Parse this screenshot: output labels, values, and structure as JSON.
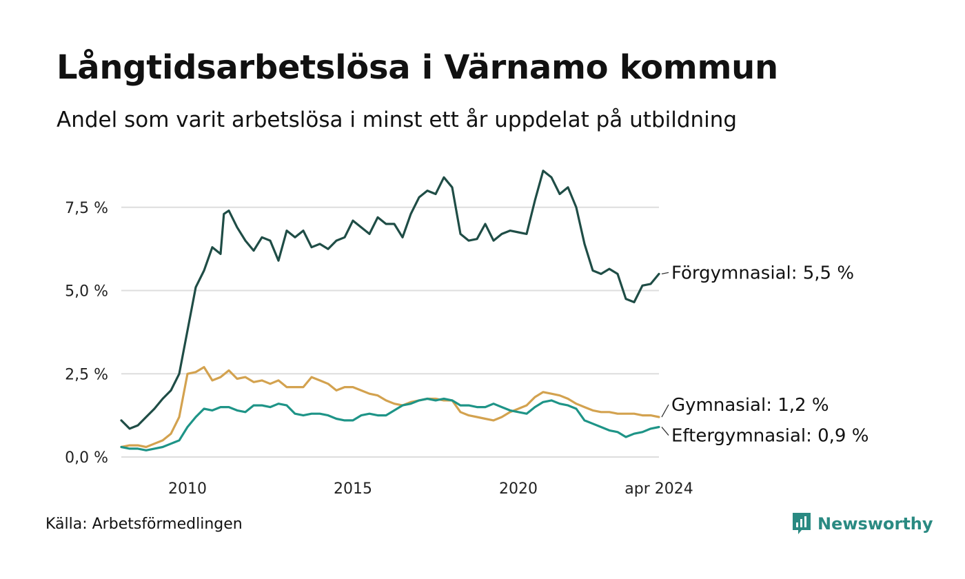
{
  "header": {
    "title": "Långtidsarbetslösa i Värnamo kommun",
    "subtitle": "Andel som varit arbetslösa i minst ett år uppdelat på utbildning"
  },
  "footer": {
    "source": "Källa: Arbetsförmedlingen",
    "brand": "Newsworthy",
    "brand_icon": "bar-chart-speech-bubble-icon"
  },
  "colors": {
    "forgymnasial": "#1f4d46",
    "gymnasial": "#d3a24f",
    "eftergymnasial": "#1e9487",
    "grid": "#dddddd",
    "brand": "#2a8a82"
  },
  "chart_data": {
    "type": "line",
    "title": "Långtidsarbetslösa i Värnamo kommun",
    "subtitle": "Andel som varit arbetslösa i minst ett år uppdelat på utbildning",
    "xlabel": "",
    "ylabel": "",
    "x_range": [
      2008.0,
      2024.25
    ],
    "ylim": [
      0,
      8.8
    ],
    "y_ticks": [
      0,
      2.5,
      5.0,
      7.5
    ],
    "y_tick_labels": [
      "0,0 %",
      "2,5 %",
      "5,0 %",
      "7,5 %"
    ],
    "x_ticks": [
      2010,
      2015,
      2020,
      2024.25
    ],
    "x_tick_labels": [
      "2010",
      "2015",
      "2020",
      "apr 2024"
    ],
    "grid": true,
    "legend": "direct labels at line ends (right)",
    "series": [
      {
        "name": "Förgymnasial",
        "end_label": "Förgymnasial: 5,5 %",
        "points": [
          [
            2008.0,
            1.1
          ],
          [
            2008.25,
            0.85
          ],
          [
            2008.5,
            0.95
          ],
          [
            2008.75,
            1.2
          ],
          [
            2009.0,
            1.45
          ],
          [
            2009.25,
            1.75
          ],
          [
            2009.5,
            2.0
          ],
          [
            2009.75,
            2.5
          ],
          [
            2010.0,
            3.8
          ],
          [
            2010.25,
            5.1
          ],
          [
            2010.5,
            5.6
          ],
          [
            2010.75,
            6.3
          ],
          [
            2011.0,
            6.1
          ],
          [
            2011.1,
            7.3
          ],
          [
            2011.25,
            7.4
          ],
          [
            2011.5,
            6.9
          ],
          [
            2011.75,
            6.5
          ],
          [
            2012.0,
            6.2
          ],
          [
            2012.25,
            6.6
          ],
          [
            2012.5,
            6.5
          ],
          [
            2012.75,
            5.9
          ],
          [
            2013.0,
            6.8
          ],
          [
            2013.25,
            6.6
          ],
          [
            2013.5,
            6.8
          ],
          [
            2013.75,
            6.3
          ],
          [
            2014.0,
            6.4
          ],
          [
            2014.25,
            6.25
          ],
          [
            2014.5,
            6.5
          ],
          [
            2014.75,
            6.6
          ],
          [
            2015.0,
            7.1
          ],
          [
            2015.25,
            6.9
          ],
          [
            2015.5,
            6.7
          ],
          [
            2015.75,
            7.2
          ],
          [
            2016.0,
            7.0
          ],
          [
            2016.25,
            7.0
          ],
          [
            2016.5,
            6.6
          ],
          [
            2016.75,
            7.3
          ],
          [
            2017.0,
            7.8
          ],
          [
            2017.25,
            8.0
          ],
          [
            2017.5,
            7.9
          ],
          [
            2017.75,
            8.4
          ],
          [
            2018.0,
            8.1
          ],
          [
            2018.25,
            6.7
          ],
          [
            2018.5,
            6.5
          ],
          [
            2018.75,
            6.55
          ],
          [
            2019.0,
            7.0
          ],
          [
            2019.25,
            6.5
          ],
          [
            2019.5,
            6.7
          ],
          [
            2019.75,
            6.8
          ],
          [
            2020.0,
            6.75
          ],
          [
            2020.25,
            6.7
          ],
          [
            2020.5,
            7.7
          ],
          [
            2020.75,
            8.6
          ],
          [
            2021.0,
            8.4
          ],
          [
            2021.25,
            7.9
          ],
          [
            2021.5,
            8.1
          ],
          [
            2021.75,
            7.5
          ],
          [
            2022.0,
            6.4
          ],
          [
            2022.25,
            5.6
          ],
          [
            2022.5,
            5.5
          ],
          [
            2022.75,
            5.65
          ],
          [
            2023.0,
            5.5
          ],
          [
            2023.25,
            4.75
          ],
          [
            2023.5,
            4.65
          ],
          [
            2023.75,
            5.15
          ],
          [
            2024.0,
            5.2
          ],
          [
            2024.25,
            5.5
          ]
        ]
      },
      {
        "name": "Gymnasial",
        "end_label": "Gymnasial: 1,2 %",
        "points": [
          [
            2008.0,
            0.3
          ],
          [
            2008.25,
            0.35
          ],
          [
            2008.5,
            0.35
          ],
          [
            2008.75,
            0.3
          ],
          [
            2009.0,
            0.4
          ],
          [
            2009.25,
            0.5
          ],
          [
            2009.5,
            0.7
          ],
          [
            2009.75,
            1.2
          ],
          [
            2010.0,
            2.5
          ],
          [
            2010.25,
            2.55
          ],
          [
            2010.5,
            2.7
          ],
          [
            2010.75,
            2.3
          ],
          [
            2011.0,
            2.4
          ],
          [
            2011.25,
            2.6
          ],
          [
            2011.5,
            2.35
          ],
          [
            2011.75,
            2.4
          ],
          [
            2012.0,
            2.25
          ],
          [
            2012.25,
            2.3
          ],
          [
            2012.5,
            2.2
          ],
          [
            2012.75,
            2.3
          ],
          [
            2013.0,
            2.1
          ],
          [
            2013.25,
            2.1
          ],
          [
            2013.5,
            2.1
          ],
          [
            2013.75,
            2.4
          ],
          [
            2014.0,
            2.3
          ],
          [
            2014.25,
            2.2
          ],
          [
            2014.5,
            2.0
          ],
          [
            2014.75,
            2.1
          ],
          [
            2015.0,
            2.1
          ],
          [
            2015.25,
            2.0
          ],
          [
            2015.5,
            1.9
          ],
          [
            2015.75,
            1.85
          ],
          [
            2016.0,
            1.7
          ],
          [
            2016.25,
            1.6
          ],
          [
            2016.5,
            1.55
          ],
          [
            2016.75,
            1.65
          ],
          [
            2017.0,
            1.7
          ],
          [
            2017.25,
            1.75
          ],
          [
            2017.5,
            1.75
          ],
          [
            2017.75,
            1.7
          ],
          [
            2018.0,
            1.7
          ],
          [
            2018.25,
            1.35
          ],
          [
            2018.5,
            1.25
          ],
          [
            2018.75,
            1.2
          ],
          [
            2019.0,
            1.15
          ],
          [
            2019.25,
            1.1
          ],
          [
            2019.5,
            1.2
          ],
          [
            2019.75,
            1.35
          ],
          [
            2020.0,
            1.45
          ],
          [
            2020.25,
            1.55
          ],
          [
            2020.5,
            1.8
          ],
          [
            2020.75,
            1.95
          ],
          [
            2021.0,
            1.9
          ],
          [
            2021.25,
            1.85
          ],
          [
            2021.5,
            1.75
          ],
          [
            2021.75,
            1.6
          ],
          [
            2022.0,
            1.5
          ],
          [
            2022.25,
            1.4
          ],
          [
            2022.5,
            1.35
          ],
          [
            2022.75,
            1.35
          ],
          [
            2023.0,
            1.3
          ],
          [
            2023.25,
            1.3
          ],
          [
            2023.5,
            1.3
          ],
          [
            2023.75,
            1.25
          ],
          [
            2024.0,
            1.25
          ],
          [
            2024.25,
            1.2
          ]
        ]
      },
      {
        "name": "Eftergymnasial",
        "end_label": "Eftergymnasial: 0,9 %",
        "points": [
          [
            2008.0,
            0.3
          ],
          [
            2008.25,
            0.25
          ],
          [
            2008.5,
            0.25
          ],
          [
            2008.75,
            0.2
          ],
          [
            2009.0,
            0.25
          ],
          [
            2009.25,
            0.3
          ],
          [
            2009.5,
            0.4
          ],
          [
            2009.75,
            0.5
          ],
          [
            2010.0,
            0.9
          ],
          [
            2010.25,
            1.2
          ],
          [
            2010.5,
            1.45
          ],
          [
            2010.75,
            1.4
          ],
          [
            2011.0,
            1.5
          ],
          [
            2011.25,
            1.5
          ],
          [
            2011.5,
            1.4
          ],
          [
            2011.75,
            1.35
          ],
          [
            2012.0,
            1.55
          ],
          [
            2012.25,
            1.55
          ],
          [
            2012.5,
            1.5
          ],
          [
            2012.75,
            1.6
          ],
          [
            2013.0,
            1.55
          ],
          [
            2013.25,
            1.3
          ],
          [
            2013.5,
            1.25
          ],
          [
            2013.75,
            1.3
          ],
          [
            2014.0,
            1.3
          ],
          [
            2014.25,
            1.25
          ],
          [
            2014.5,
            1.15
          ],
          [
            2014.75,
            1.1
          ],
          [
            2015.0,
            1.1
          ],
          [
            2015.25,
            1.25
          ],
          [
            2015.5,
            1.3
          ],
          [
            2015.75,
            1.25
          ],
          [
            2016.0,
            1.25
          ],
          [
            2016.25,
            1.4
          ],
          [
            2016.5,
            1.55
          ],
          [
            2016.75,
            1.6
          ],
          [
            2017.0,
            1.7
          ],
          [
            2017.25,
            1.75
          ],
          [
            2017.5,
            1.7
          ],
          [
            2017.75,
            1.75
          ],
          [
            2018.0,
            1.7
          ],
          [
            2018.25,
            1.55
          ],
          [
            2018.5,
            1.55
          ],
          [
            2018.75,
            1.5
          ],
          [
            2019.0,
            1.5
          ],
          [
            2019.25,
            1.6
          ],
          [
            2019.5,
            1.5
          ],
          [
            2019.75,
            1.4
          ],
          [
            2020.0,
            1.35
          ],
          [
            2020.25,
            1.3
          ],
          [
            2020.5,
            1.5
          ],
          [
            2020.75,
            1.65
          ],
          [
            2021.0,
            1.7
          ],
          [
            2021.25,
            1.6
          ],
          [
            2021.5,
            1.55
          ],
          [
            2021.75,
            1.45
          ],
          [
            2022.0,
            1.1
          ],
          [
            2022.25,
            1.0
          ],
          [
            2022.5,
            0.9
          ],
          [
            2022.75,
            0.8
          ],
          [
            2023.0,
            0.75
          ],
          [
            2023.25,
            0.6
          ],
          [
            2023.5,
            0.7
          ],
          [
            2023.75,
            0.75
          ],
          [
            2024.0,
            0.85
          ],
          [
            2024.25,
            0.9
          ]
        ]
      }
    ]
  }
}
